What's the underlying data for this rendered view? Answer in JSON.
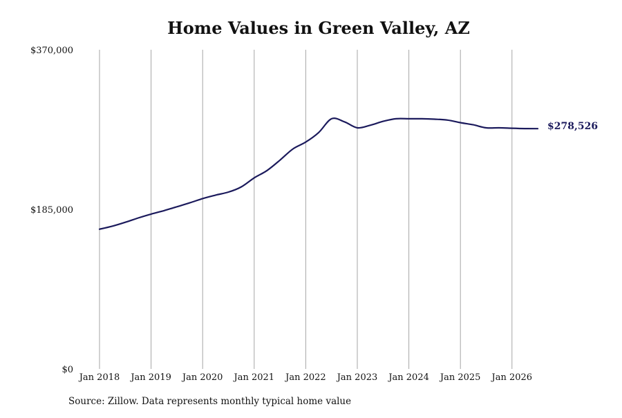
{
  "chart_data": {
    "type": "line",
    "title": "Home Values in Green Valley, AZ",
    "source": "Source: Zillow. Data represents monthly typical home value",
    "x_ticks": [
      "Jan 2018",
      "Jan 2019",
      "Jan 2020",
      "Jan 2021",
      "Jan 2022",
      "Jan 2023",
      "Jan 2024",
      "Jan 2025",
      "Jan 2026"
    ],
    "y_ticks": [
      "$0",
      "$185,000",
      "$370,000"
    ],
    "ylim": [
      0,
      370000
    ],
    "xlim": [
      "2018-01",
      "2026-12"
    ],
    "grid": "vertical",
    "line_color": "#1b1a5c",
    "end_label": "$278,526",
    "series": [
      {
        "x": [
          "2018-01",
          "2018-04",
          "2018-07",
          "2018-10",
          "2019-01",
          "2019-04",
          "2019-07",
          "2019-10",
          "2020-01",
          "2020-04",
          "2020-07",
          "2020-10",
          "2021-01",
          "2021-04",
          "2021-07",
          "2021-10",
          "2022-01",
          "2022-04",
          "2022-07",
          "2022-10",
          "2023-01",
          "2023-04",
          "2023-07",
          "2023-10",
          "2024-01",
          "2024-04",
          "2024-07",
          "2024-10",
          "2025-01",
          "2025-04",
          "2025-07",
          "2025-10",
          "2026-01",
          "2026-04",
          "2026-07"
        ],
        "values": [
          162000,
          165500,
          170000,
          175000,
          179500,
          183500,
          188000,
          192500,
          197500,
          201500,
          205000,
          211000,
          221500,
          230000,
          242000,
          255000,
          263000,
          274000,
          290000,
          286500,
          279500,
          282500,
          287000,
          290000,
          290000,
          290000,
          289500,
          288500,
          285500,
          283000,
          279500,
          279500,
          279000,
          278600,
          278526
        ]
      }
    ]
  }
}
